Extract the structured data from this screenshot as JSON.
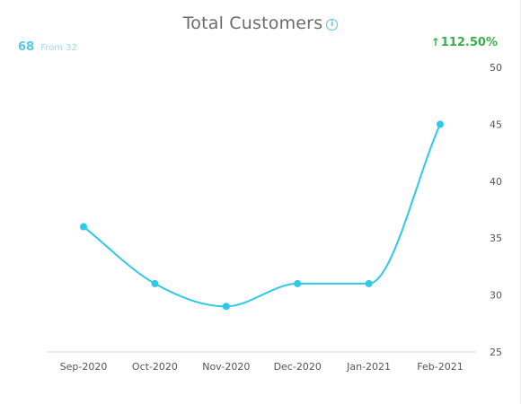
{
  "widget": {
    "title": "Total Customers",
    "info_icon": "info-icon",
    "current_value": "68",
    "from_label": "From 32",
    "change_arrow": "↑",
    "change_value": "112.50%",
    "colors": {
      "accent": "#4fc9e4",
      "line": "#2ec8e8",
      "positive": "#3bae4f",
      "text": "#6b6b6b"
    }
  },
  "chart_data": {
    "type": "line",
    "title": "Total Customers",
    "xlabel": "",
    "ylabel": "",
    "categories": [
      "Sep-2020",
      "Oct-2020",
      "Nov-2020",
      "Dec-2020",
      "Jan-2021",
      "Feb-2021"
    ],
    "series": [
      {
        "values": [
          36,
          31,
          29,
          31,
          31,
          45
        ]
      }
    ],
    "ylim": [
      25,
      50
    ],
    "yticks": [
      25,
      30,
      35,
      40,
      45,
      50
    ],
    "y_axis_position": "right",
    "grid": false,
    "smooth": true,
    "markers": true
  }
}
